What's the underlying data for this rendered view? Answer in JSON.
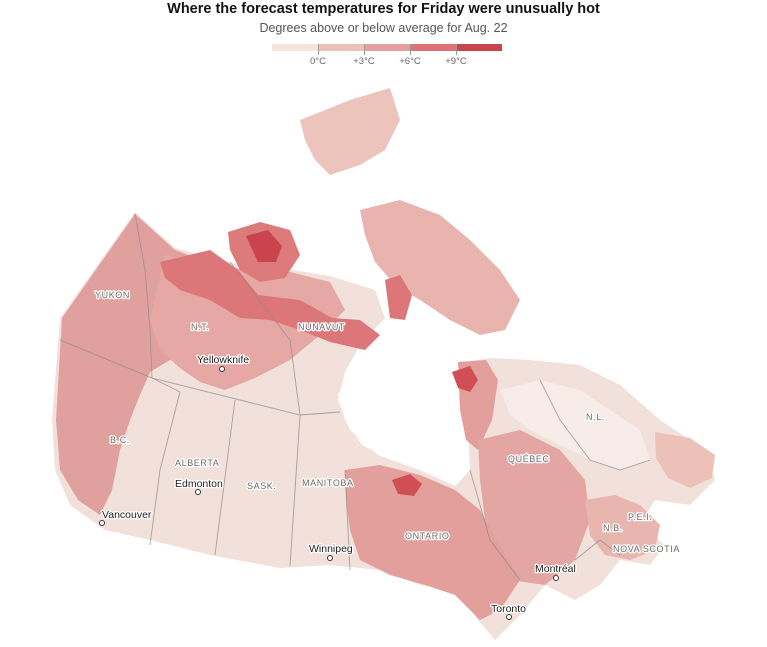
{
  "title": "Where the forecast temperatures for Friday were unusually hot",
  "subtitle": "Degrees above or below average for Aug. 22",
  "legend": {
    "colors": [
      "#f5e3dd",
      "#ecc2b8",
      "#e39f9c",
      "#de7174",
      "#c9444c"
    ],
    "ticks": [
      "0°C",
      "+3°C",
      "+6°C",
      "+9°C"
    ]
  },
  "map": {
    "provinces": [
      "YUKON",
      "N.T.",
      "NUNAVUT",
      "B.C.",
      "ALBERTA",
      "SASK.",
      "MANITOBA",
      "ONTARIO",
      "QUÉBEC",
      "N.L.",
      "N.B.",
      "P.E.I.",
      "NOVA SCOTIA"
    ],
    "cities": [
      "Yellowknife",
      "Edmonton",
      "Vancouver",
      "Winnipeg",
      "Toronto",
      "Montréal"
    ]
  }
}
